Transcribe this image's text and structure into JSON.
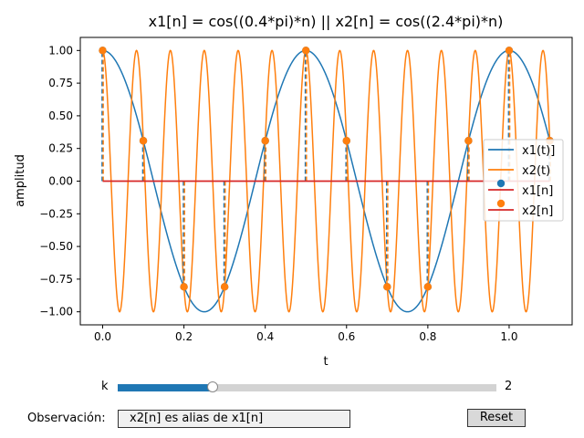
{
  "chart_data": {
    "type": "line",
    "title": "x1[n] = cos((0.4*pi)*n)  ||  x2[n] = cos((2.4*pi)*n)",
    "xlabel": "t",
    "ylabel": "amplitud",
    "xlim": [
      -0.055,
      1.155
    ],
    "ylim": [
      -1.1,
      1.1
    ],
    "xticks": [
      "0.0",
      "0.2",
      "0.4",
      "0.6",
      "0.8",
      "1.0"
    ],
    "xtick_values": [
      0.0,
      0.2,
      0.4,
      0.6,
      0.8,
      1.0
    ],
    "yticks": [
      "1.00",
      "0.75",
      "0.50",
      "0.25",
      "0.00",
      "−0.25",
      "−0.50",
      "−0.75",
      "−1.00"
    ],
    "ytick_values": [
      1.0,
      0.75,
      0.5,
      0.25,
      0.0,
      -0.25,
      -0.5,
      -0.75,
      -1.0
    ],
    "grid": false,
    "legend_position": "center-right",
    "continuous": {
      "t_range": [
        0.0,
        1.1
      ],
      "x1_freq_cycles_per_unit": 2,
      "x2_freq_cycles_per_unit": 12
    },
    "samples": {
      "t": [
        0.0,
        0.1,
        0.2,
        0.3,
        0.4,
        0.5,
        0.6,
        0.7,
        0.8,
        0.9,
        1.0,
        1.1
      ],
      "values": [
        1.0,
        0.309,
        -0.809,
        -0.809,
        0.309,
        1.0,
        0.309,
        -0.809,
        -0.809,
        0.309,
        1.0,
        0.309
      ]
    },
    "series": [
      {
        "name": "x1(t)]",
        "color": "#1f77b4",
        "kind": "line"
      },
      {
        "name": "x2(t)",
        "color": "#ff7f0e",
        "kind": "line"
      },
      {
        "name": "x1[n]",
        "color": "#1f77b4",
        "kind": "stem",
        "baseline_color": "#d62728"
      },
      {
        "name": "x2[n]",
        "color": "#ff7f0e",
        "kind": "stem",
        "baseline_color": "#d62728"
      }
    ]
  },
  "controls": {
    "slider_label": "k",
    "slider_value": "2",
    "slider_fraction": 0.25,
    "observation_label": "Observación:",
    "observation_text": "x2[n] es alias de x1[n]",
    "reset_label": "Reset"
  }
}
